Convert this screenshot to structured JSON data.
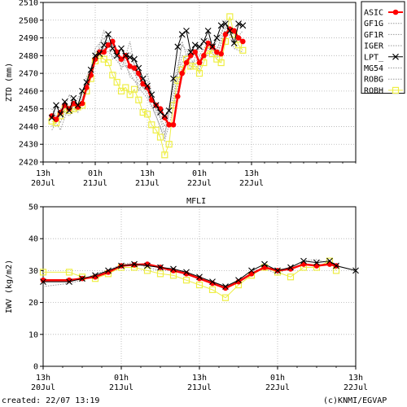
{
  "footer": {
    "created": "created: 22/07 13:19",
    "credit": "(c)KNMI/EGVAP"
  },
  "colors": {
    "ASIC": "#ff0000",
    "LPT_": "#000000",
    "ROBH": "#eeee44",
    "grey": "#999999"
  },
  "chart_data": [
    {
      "type": "line",
      "title": "",
      "ylabel": "ZTD (mm)",
      "xlabel": "",
      "ylim": [
        2420,
        2510
      ],
      "yticks": [
        2420,
        2430,
        2440,
        2450,
        2460,
        2470,
        2480,
        2490,
        2500,
        2510
      ],
      "x_range_hours": [
        0,
        72
      ],
      "x_unit": "hours since 20Jul 13h",
      "xticks": [
        {
          "h": 0,
          "top": "13h",
          "bottom": "20Jul"
        },
        {
          "h": 12,
          "top": "01h",
          "bottom": "21Jul"
        },
        {
          "h": 24,
          "top": "13h",
          "bottom": "21Jul"
        },
        {
          "h": 36,
          "top": "01h",
          "bottom": "22Jul"
        },
        {
          "h": 48,
          "top": "13h",
          "bottom": "22Jul"
        }
      ],
      "grid": true,
      "legend": [
        "ASIC",
        "GF1G",
        "GF1R",
        "IGER",
        "LPT_",
        "MG54",
        "ROBG",
        "ROBH"
      ],
      "legend_position": "right",
      "series": [
        {
          "name": "ASIC",
          "style": "red-dots",
          "x": [
            2,
            3,
            4,
            5,
            6,
            7,
            8,
            9,
            10,
            11,
            12,
            13,
            14,
            15,
            16,
            17,
            18,
            19,
            20,
            21,
            22,
            23,
            24,
            25,
            26,
            27,
            28,
            29,
            30,
            31,
            32,
            33,
            34,
            35,
            36,
            37,
            38,
            39,
            40,
            41,
            42,
            43,
            44,
            45,
            46
          ],
          "y": [
            2446,
            2444,
            2448,
            2452,
            2450,
            2453,
            2451,
            2453,
            2462,
            2469,
            2478,
            2482,
            2482,
            2486,
            2488,
            2482,
            2478,
            2480,
            2474,
            2473,
            2470,
            2464,
            2462,
            2455,
            2452,
            2450,
            2445,
            2441,
            2441,
            2457,
            2470,
            2476,
            2480,
            2482,
            2476,
            2480,
            2487,
            2485,
            2482,
            2481,
            2492,
            2495,
            2494,
            2490,
            2488
          ]
        },
        {
          "name": "LPT_",
          "style": "black-x",
          "x": [
            2,
            3,
            4,
            5,
            6,
            7,
            8,
            9,
            10,
            11,
            12,
            13,
            14,
            15,
            16,
            17,
            18,
            19,
            20,
            21,
            22,
            23,
            24,
            25,
            26,
            27,
            28,
            29,
            30,
            31,
            32,
            33,
            34,
            35,
            36,
            37,
            38,
            39,
            40,
            41,
            42,
            43,
            44,
            45,
            46
          ],
          "y": [
            2445,
            2452,
            2447,
            2454,
            2449,
            2456,
            2452,
            2460,
            2465,
            2472,
            2480,
            2481,
            2486,
            2492,
            2484,
            2480,
            2484,
            2480,
            2479,
            2478,
            2473,
            2467,
            2463,
            2458,
            2452,
            2448,
            2446,
            2449,
            2467,
            2485,
            2492,
            2494,
            2482,
            2486,
            2485,
            2488,
            2494,
            2485,
            2490,
            2497,
            2498,
            2494,
            2487,
            2498,
            2497
          ]
        },
        {
          "name": "ROBH",
          "style": "yellow-squares",
          "x": [
            2,
            3,
            4,
            5,
            6,
            7,
            8,
            9,
            10,
            11,
            12,
            13,
            14,
            15,
            16,
            17,
            18,
            19,
            20,
            21,
            22,
            23,
            24,
            25,
            26,
            27,
            28,
            29,
            30,
            31,
            32,
            33,
            34,
            35,
            36,
            37,
            38,
            39,
            40,
            41,
            42,
            43,
            44,
            45,
            46
          ],
          "y": [
            2443,
            2442,
            2446,
            2450,
            2449,
            2450,
            2451,
            2452,
            2460,
            2467,
            2477,
            2480,
            2478,
            2476,
            2469,
            2465,
            2460,
            2462,
            2458,
            2461,
            2455,
            2448,
            2447,
            2441,
            2438,
            2434,
            2424,
            2430,
            2452,
            2466,
            2472,
            2478,
            2474,
            2474,
            2470,
            2476,
            2483,
            2481,
            2478,
            2476,
            2488,
            2502,
            2492,
            2486,
            2483
          ]
        },
        {
          "name": "GF1G",
          "style": "grey-dotted",
          "x": [
            2,
            4,
            6,
            8,
            10,
            12,
            14,
            16,
            18,
            20,
            22,
            24,
            26,
            28,
            30,
            32,
            34,
            36,
            38,
            40,
            42,
            44,
            46
          ],
          "y": [
            2440,
            2450,
            2446,
            2452,
            2466,
            2480,
            2488,
            2486,
            2478,
            2470,
            2462,
            2456,
            2446,
            2432,
            2450,
            2474,
            2478,
            2472,
            2486,
            2478,
            2496,
            2492,
            2486
          ]
        },
        {
          "name": "GF1R",
          "style": "grey-dotted",
          "x": [
            2,
            4,
            6,
            8,
            10,
            12,
            14,
            16,
            18,
            20,
            22,
            24,
            26,
            28,
            30,
            32,
            34,
            36,
            38,
            40,
            42,
            44,
            46
          ],
          "y": [
            2450,
            2442,
            2458,
            2448,
            2462,
            2484,
            2490,
            2482,
            2476,
            2482,
            2468,
            2466,
            2450,
            2440,
            2462,
            2486,
            2480,
            2484,
            2490,
            2482,
            2500,
            2488,
            2494
          ]
        },
        {
          "name": "IGER",
          "style": "grey-dotted",
          "x": [
            2,
            4,
            6,
            8,
            10,
            12,
            14,
            16,
            18,
            20,
            22,
            24,
            26,
            28,
            30,
            32,
            34,
            36,
            38,
            40,
            42,
            44,
            46
          ],
          "y": [
            2438,
            2446,
            2448,
            2456,
            2464,
            2478,
            2494,
            2478,
            2484,
            2468,
            2464,
            2460,
            2452,
            2436,
            2458,
            2480,
            2476,
            2478,
            2484,
            2484,
            2494,
            2490,
            2490
          ]
        },
        {
          "name": "MG54",
          "style": "grey-dotted",
          "x": [
            2,
            4,
            6,
            8,
            10,
            12,
            14,
            16,
            18,
            20,
            22,
            24,
            26,
            28,
            30,
            32,
            34,
            36,
            38,
            40,
            42,
            44,
            46
          ],
          "y": [
            2446,
            2438,
            2452,
            2450,
            2468,
            2476,
            2486,
            2490,
            2472,
            2488,
            2460,
            2470,
            2448,
            2444,
            2454,
            2488,
            2472,
            2486,
            2480,
            2488,
            2498,
            2484,
            2482
          ]
        },
        {
          "name": "ROBG",
          "style": "grey-dotted",
          "x": [
            2,
            4,
            6,
            8,
            10,
            12,
            14,
            16,
            18,
            20,
            22,
            24,
            26,
            28,
            30,
            32,
            34,
            36,
            38,
            40,
            42,
            44,
            46
          ],
          "y": [
            2444,
            2448,
            2450,
            2450,
            2462,
            2482,
            2484,
            2480,
            2474,
            2474,
            2466,
            2458,
            2446,
            2434,
            2464,
            2476,
            2484,
            2480,
            2488,
            2480,
            2494,
            2494,
            2488
          ]
        }
      ]
    },
    {
      "type": "line",
      "title": "MFLI",
      "ylabel": "IWV (kg/m2)",
      "xlabel": "",
      "ylim": [
        0,
        50
      ],
      "yticks": [
        0,
        10,
        20,
        30,
        40,
        50
      ],
      "x_range_hours": [
        0,
        48
      ],
      "x_unit": "hours since 20Jul 13h",
      "xticks": [
        {
          "h": 0,
          "top": "13h",
          "bottom": "20Jul"
        },
        {
          "h": 12,
          "top": "01h",
          "bottom": "21Jul"
        },
        {
          "h": 24,
          "top": "13h",
          "bottom": "21Jul"
        },
        {
          "h": 36,
          "top": "01h",
          "bottom": "22Jul"
        },
        {
          "h": 48,
          "top": "13h",
          "bottom": "22Jul"
        }
      ],
      "grid": true,
      "series": [
        {
          "name": "LPT_",
          "style": "black-x",
          "x": [
            0,
            4,
            6,
            8,
            10,
            12,
            14,
            16,
            18,
            20,
            22,
            24,
            26,
            28,
            30,
            32,
            34,
            36,
            38,
            40,
            42,
            44,
            45,
            48
          ],
          "y": [
            26.5,
            26.5,
            27.5,
            28.5,
            30,
            31.5,
            32,
            31.5,
            31,
            30.5,
            29.5,
            28,
            26.5,
            25,
            27,
            30,
            32,
            30,
            31,
            33,
            32.5,
            33,
            31.5,
            30
          ]
        },
        {
          "name": "ASIC",
          "style": "red-dots",
          "x": [
            0,
            4,
            6,
            8,
            10,
            12,
            14,
            16,
            18,
            20,
            22,
            24,
            26,
            28,
            30,
            32,
            34,
            36,
            38,
            40,
            42,
            44,
            45
          ],
          "y": [
            27,
            27,
            27.5,
            28,
            29.5,
            31.5,
            31.8,
            32,
            31,
            30,
            29,
            27.5,
            26,
            24.5,
            26.5,
            29,
            31,
            30,
            30.5,
            32,
            31.5,
            32,
            31.5
          ]
        },
        {
          "name": "ROBH",
          "style": "yellow-squares",
          "x": [
            0,
            4,
            6,
            8,
            10,
            12,
            14,
            16,
            18,
            20,
            22,
            24,
            26,
            28,
            30,
            32,
            34,
            36,
            38,
            40,
            42,
            44,
            45
          ],
          "y": [
            29.5,
            29.5,
            28,
            27.5,
            29,
            31,
            31,
            30,
            29,
            28.5,
            27,
            25.5,
            24,
            21.5,
            25.5,
            28.5,
            31,
            29.5,
            28,
            31,
            31,
            33,
            30
          ]
        },
        {
          "name": "grey",
          "style": "grey-dotted",
          "x": [
            0,
            4,
            6,
            8,
            10,
            12,
            14,
            16,
            18,
            20,
            22,
            24,
            26,
            28,
            30,
            32,
            34,
            36,
            38,
            40,
            42,
            44,
            46,
            48
          ],
          "y": [
            25,
            26,
            27,
            29,
            30,
            32,
            32.5,
            31,
            30,
            30,
            29.5,
            27.5,
            26.5,
            24.5,
            27,
            30,
            30.5,
            29,
            31,
            33,
            33.5,
            32,
            31,
            30
          ]
        }
      ]
    }
  ]
}
